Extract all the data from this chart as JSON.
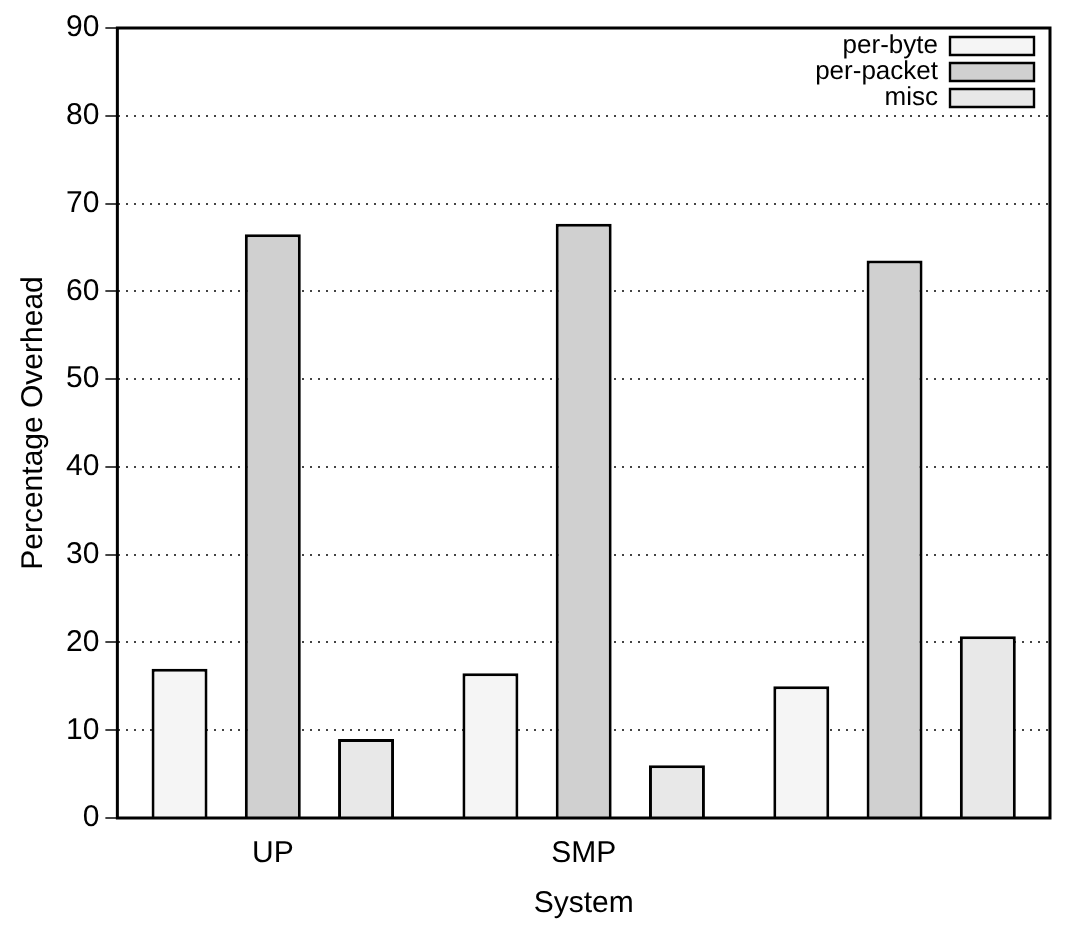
{
  "chart_data": {
    "type": "bar",
    "xlabel": "System",
    "ylabel": "Percentage Overhead",
    "categories": [
      "UP",
      "SMP",
      null
    ],
    "series": [
      {
        "name": "per-byte",
        "color": "#f5f5f5",
        "values": [
          17,
          16.5,
          15
        ]
      },
      {
        "name": "per-packet",
        "color": "#d0d0d0",
        "values": [
          66.5,
          67.7,
          63.5
        ]
      },
      {
        "name": "misc",
        "color": "#e8e8e8",
        "values": [
          9,
          6,
          20.7
        ]
      }
    ],
    "ylim": [
      0,
      90
    ],
    "yticks": [
      0,
      10,
      20,
      30,
      40,
      50,
      60,
      70,
      80,
      90
    ],
    "grid": "y",
    "legend": "top right",
    "line_style": "dotted"
  }
}
